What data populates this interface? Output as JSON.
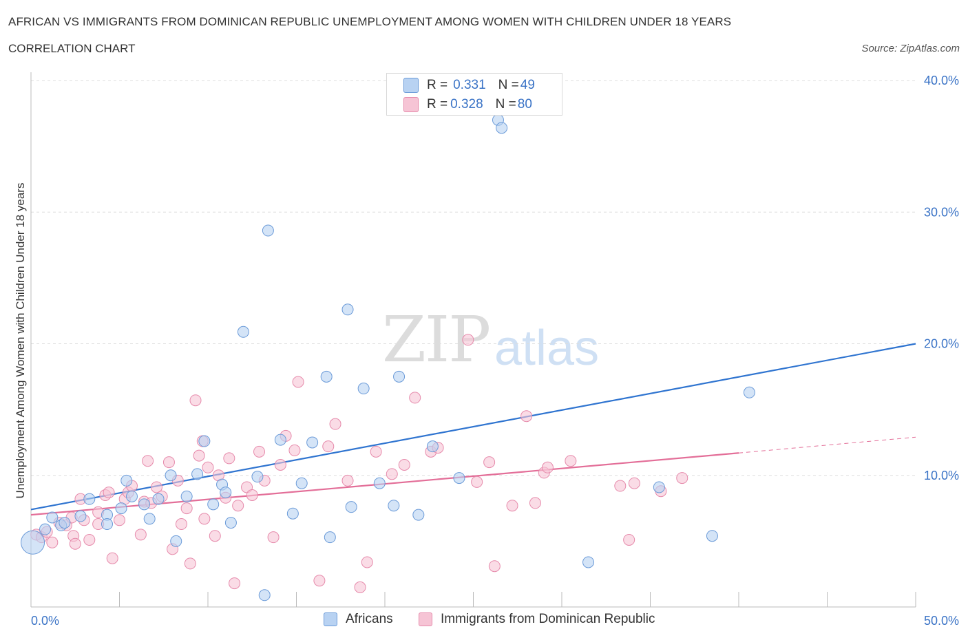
{
  "title": "AFRICAN VS IMMIGRANTS FROM DOMINICAN REPUBLIC UNEMPLOYMENT AMONG WOMEN WITH CHILDREN UNDER 18 YEARS",
  "subtitle": "CORRELATION CHART",
  "source": "Source: ZipAtlas.com",
  "watermark": {
    "zip": "ZIP",
    "atlas": "atlas"
  },
  "legend_top": {
    "africans": {
      "r_label": "R = ",
      "r_value": "0.331",
      "n_label": "N = ",
      "n_value": "49"
    },
    "dominican": {
      "r_label": "R = ",
      "r_value": "0.328",
      "n_label": "N = ",
      "n_value": "80"
    }
  },
  "legend_bottom": {
    "africans": "Africans",
    "dominican": "Immigrants from Dominican Republic"
  },
  "colors": {
    "africans_fill": "#b8d2f2",
    "africans_stroke": "#6a9ad8",
    "africans_line": "#2f74d0",
    "dominican_fill": "#f6c4d5",
    "dominican_stroke": "#e68aab",
    "dominican_line": "#e36e98",
    "grid": "#dddddd",
    "tick_label": "#3a73c6"
  },
  "chart_data": {
    "type": "scatter",
    "title": "AFRICAN VS IMMIGRANTS FROM DOMINICAN REPUBLIC UNEMPLOYMENT AMONG WOMEN WITH CHILDREN UNDER 18 YEARS",
    "xlabel": "",
    "ylabel": "Unemployment Among Women with Children Under 18 years",
    "xlim": [
      0,
      50
    ],
    "ylim": [
      0,
      40
    ],
    "x_tick_labels": [
      "0.0%",
      "50.0%"
    ],
    "y_ticks": [
      10,
      20,
      30,
      40
    ],
    "y_tick_labels": [
      "10.0%",
      "20.0%",
      "30.0%",
      "40.0%"
    ],
    "grid": true,
    "legend_position": "top-center",
    "series": [
      {
        "name": "Africans",
        "points": [
          [
            0.1,
            4.9
          ],
          [
            0.8,
            5.9
          ],
          [
            1.2,
            6.8
          ],
          [
            1.7,
            6.2
          ],
          [
            2.8,
            6.9
          ],
          [
            3.3,
            8.2
          ],
          [
            4.3,
            7.0
          ],
          [
            4.3,
            6.3
          ],
          [
            5.1,
            7.5
          ],
          [
            5.4,
            9.6
          ],
          [
            5.7,
            8.4
          ],
          [
            6.4,
            7.8
          ],
          [
            6.7,
            6.7
          ],
          [
            7.2,
            8.2
          ],
          [
            7.9,
            10.0
          ],
          [
            8.2,
            5.0
          ],
          [
            8.8,
            8.4
          ],
          [
            9.4,
            10.1
          ],
          [
            9.8,
            12.6
          ],
          [
            10.3,
            7.8
          ],
          [
            10.8,
            9.3
          ],
          [
            11.0,
            8.7
          ],
          [
            11.3,
            6.4
          ],
          [
            12.0,
            20.9
          ],
          [
            12.8,
            9.9
          ],
          [
            13.4,
            28.6
          ],
          [
            13.2,
            0.9
          ],
          [
            14.1,
            12.7
          ],
          [
            14.8,
            7.1
          ],
          [
            15.3,
            9.4
          ],
          [
            15.9,
            12.5
          ],
          [
            16.7,
            17.5
          ],
          [
            16.9,
            5.3
          ],
          [
            17.9,
            22.6
          ],
          [
            18.1,
            7.6
          ],
          [
            18.8,
            16.6
          ],
          [
            19.7,
            9.4
          ],
          [
            20.8,
            17.5
          ],
          [
            20.5,
            7.7
          ],
          [
            21.9,
            7.0
          ],
          [
            22.7,
            12.2
          ],
          [
            24.2,
            9.8
          ],
          [
            26.4,
            37.0
          ],
          [
            26.6,
            36.4
          ],
          [
            31.5,
            3.4
          ],
          [
            35.5,
            9.1
          ],
          [
            38.5,
            5.4
          ],
          [
            40.6,
            16.3
          ],
          [
            1.9,
            6.4
          ]
        ],
        "trend": {
          "x": [
            0,
            50
          ],
          "y": [
            7.4,
            20.0
          ]
        }
      },
      {
        "name": "Immigrants from Dominican Republic",
        "points": [
          [
            0.3,
            5.5
          ],
          [
            0.6,
            5.3
          ],
          [
            0.9,
            5.7
          ],
          [
            1.2,
            4.9
          ],
          [
            1.6,
            6.4
          ],
          [
            2.0,
            6.2
          ],
          [
            2.3,
            6.8
          ],
          [
            2.4,
            5.4
          ],
          [
            2.8,
            8.2
          ],
          [
            3.0,
            6.6
          ],
          [
            3.3,
            5.1
          ],
          [
            3.8,
            7.2
          ],
          [
            3.8,
            6.3
          ],
          [
            4.2,
            8.5
          ],
          [
            4.4,
            8.7
          ],
          [
            4.6,
            3.7
          ],
          [
            5.0,
            6.6
          ],
          [
            5.3,
            8.2
          ],
          [
            5.5,
            8.7
          ],
          [
            5.7,
            9.2
          ],
          [
            6.2,
            5.5
          ],
          [
            6.4,
            8.0
          ],
          [
            6.6,
            11.1
          ],
          [
            6.8,
            7.9
          ],
          [
            7.1,
            9.1
          ],
          [
            7.4,
            8.4
          ],
          [
            7.8,
            11.0
          ],
          [
            8.0,
            4.4
          ],
          [
            8.3,
            9.6
          ],
          [
            8.5,
            6.3
          ],
          [
            8.8,
            7.5
          ],
          [
            9.0,
            3.3
          ],
          [
            9.3,
            15.7
          ],
          [
            9.5,
            11.5
          ],
          [
            9.8,
            6.7
          ],
          [
            10.0,
            10.6
          ],
          [
            10.4,
            5.4
          ],
          [
            10.6,
            10.0
          ],
          [
            11.0,
            8.3
          ],
          [
            11.2,
            11.3
          ],
          [
            11.5,
            1.8
          ],
          [
            11.7,
            7.7
          ],
          [
            12.2,
            9.1
          ],
          [
            12.5,
            8.5
          ],
          [
            12.9,
            11.8
          ],
          [
            13.2,
            9.6
          ],
          [
            13.7,
            5.3
          ],
          [
            14.1,
            10.8
          ],
          [
            14.4,
            13.0
          ],
          [
            14.9,
            11.9
          ],
          [
            15.1,
            17.1
          ],
          [
            16.3,
            2.0
          ],
          [
            16.8,
            12.2
          ],
          [
            17.2,
            13.9
          ],
          [
            17.9,
            9.6
          ],
          [
            18.6,
            1.5
          ],
          [
            19.0,
            3.4
          ],
          [
            19.5,
            11.8
          ],
          [
            20.4,
            10.1
          ],
          [
            21.1,
            10.8
          ],
          [
            21.7,
            15.9
          ],
          [
            22.6,
            11.8
          ],
          [
            24.7,
            20.3
          ],
          [
            25.2,
            9.5
          ],
          [
            25.9,
            11.0
          ],
          [
            26.2,
            3.1
          ],
          [
            27.2,
            7.7
          ],
          [
            28.0,
            14.5
          ],
          [
            28.5,
            7.9
          ],
          [
            29.0,
            10.2
          ],
          [
            29.2,
            10.6
          ],
          [
            30.5,
            11.1
          ],
          [
            33.3,
            9.2
          ],
          [
            33.8,
            5.1
          ],
          [
            34.1,
            9.4
          ],
          [
            35.6,
            8.8
          ],
          [
            36.8,
            9.8
          ],
          [
            23.0,
            12.1
          ],
          [
            9.7,
            12.6
          ],
          [
            2.5,
            4.8
          ]
        ],
        "trend": {
          "x": [
            0,
            40
          ],
          "y": [
            7.0,
            11.7
          ]
        },
        "trend_extension": {
          "x": [
            40,
            50
          ],
          "y": [
            11.7,
            12.9
          ]
        }
      }
    ]
  }
}
